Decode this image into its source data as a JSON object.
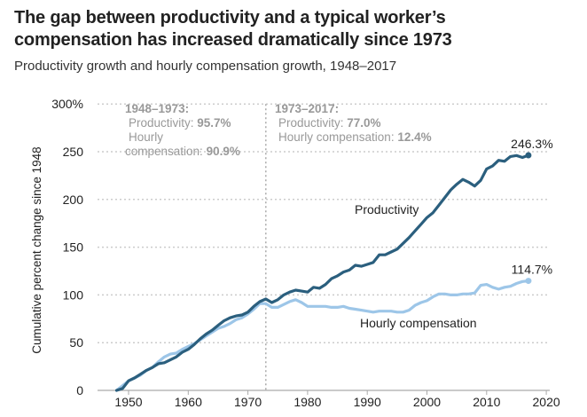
{
  "chart_data": {
    "type": "line",
    "title": "The gap between productivity and a typical worker’s compensation has increased dramatically since 1973",
    "subtitle": "Productivity growth and hourly compensation growth, 1948–2017",
    "xlabel": "",
    "ylabel": "Cumulative percent change since 1948",
    "xlim": [
      1945,
      2020
    ],
    "ylim": [
      0,
      300
    ],
    "x_ticks": [
      1950,
      1960,
      1970,
      1980,
      1990,
      2000,
      2010,
      2020
    ],
    "y_ticks": [
      0,
      50,
      100,
      150,
      200,
      250,
      300
    ],
    "y_tick_labels": [
      "0",
      "50",
      "100",
      "150",
      "200",
      "250",
      "300%"
    ],
    "grid": "horizontal-dotted",
    "reference_line": {
      "x": 1973,
      "style": "dotted"
    },
    "annotations": [
      {
        "heading": "1948–1973:",
        "lines": [
          {
            "label": "Productivity: ",
            "value": "95.7%"
          },
          {
            "label": "Hourly",
            "value": ""
          },
          {
            "label": "compensation: ",
            "value": "90.9%"
          }
        ]
      },
      {
        "heading": "1973–2017:",
        "lines": [
          {
            "label": "Productivity: ",
            "value": "77.0%"
          },
          {
            "label": "Hourly compensation: ",
            "value": "12.4%"
          }
        ]
      }
    ],
    "x": [
      1948,
      1949,
      1950,
      1951,
      1952,
      1953,
      1954,
      1955,
      1956,
      1957,
      1958,
      1959,
      1960,
      1961,
      1962,
      1963,
      1964,
      1965,
      1966,
      1967,
      1968,
      1969,
      1970,
      1971,
      1972,
      1973,
      1974,
      1975,
      1976,
      1977,
      1978,
      1979,
      1980,
      1981,
      1982,
      1983,
      1984,
      1985,
      1986,
      1987,
      1988,
      1989,
      1990,
      1991,
      1992,
      1993,
      1994,
      1995,
      1996,
      1997,
      1998,
      1999,
      2000,
      2001,
      2002,
      2003,
      2004,
      2005,
      2006,
      2007,
      2008,
      2009,
      2010,
      2011,
      2012,
      2013,
      2014,
      2015,
      2016,
      2017
    ],
    "series": [
      {
        "name": "Productivity",
        "color": "#2b5f7e",
        "end_label": "246.3%",
        "values": [
          0,
          2,
          10,
          13,
          17,
          21,
          24,
          28,
          29,
          32,
          35,
          40,
          43,
          48,
          54,
          59,
          63,
          68,
          73,
          76,
          78,
          79,
          82,
          88,
          93,
          95.7,
          92,
          95,
          100,
          103,
          105,
          104,
          103,
          108,
          107,
          111,
          117,
          120,
          124,
          126,
          131,
          130,
          132,
          134,
          142,
          142,
          145,
          148,
          154,
          160,
          167,
          174,
          181,
          186,
          194,
          202,
          210,
          216,
          221,
          218,
          214,
          220,
          232,
          235,
          241,
          240,
          245,
          246,
          244,
          246.3
        ]
      },
      {
        "name": "Hourly compensation",
        "color": "#9dc6e8",
        "end_label": "114.7%",
        "values": [
          0,
          5,
          10,
          13,
          16,
          21,
          24,
          30,
          35,
          38,
          39,
          43,
          46,
          49,
          53,
          57,
          61,
          65,
          67,
          70,
          74,
          76,
          80,
          85,
          91,
          90.9,
          87,
          87,
          90,
          93,
          95,
          92,
          88,
          88,
          88,
          88,
          87,
          87,
          88,
          86,
          85,
          84,
          83,
          82,
          83,
          83,
          83,
          82,
          82,
          84,
          89,
          92,
          94,
          98,
          101,
          101,
          100,
          100,
          101,
          101,
          102,
          110,
          111,
          108,
          106,
          108,
          109,
          112,
          114,
          114.7
        ]
      }
    ]
  }
}
